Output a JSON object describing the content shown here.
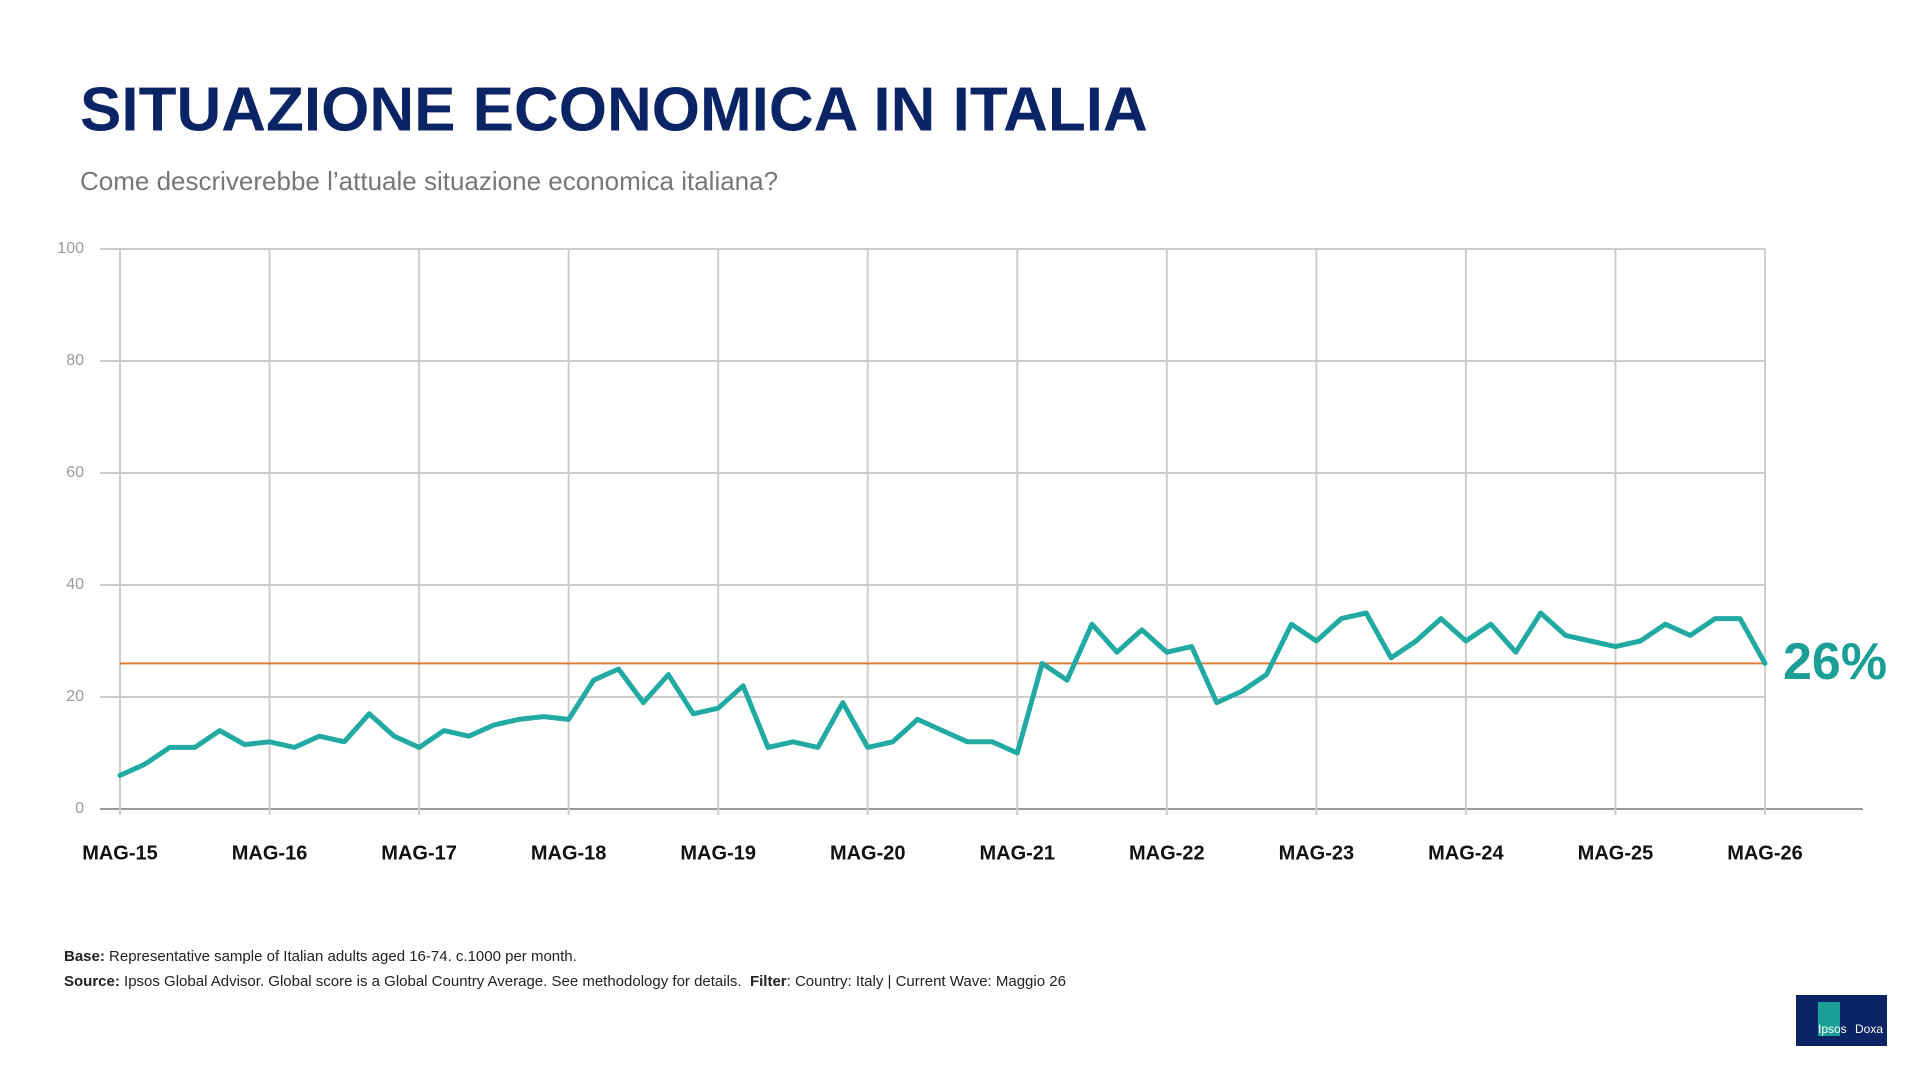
{
  "chart_data": {
    "type": "line",
    "title": "SITUAZIONE ECONOMICA IN ITALIA",
    "subtitle": "Come descriverebbe l’attuale situazione economica italiana?",
    "categories": [
      "MAG-15",
      null,
      null,
      null,
      null,
      null,
      "MAG-16",
      null,
      null,
      null,
      null,
      null,
      "MAG-17",
      null,
      null,
      null,
      null,
      null,
      "MAG-18",
      null,
      null,
      null,
      null,
      null,
      "MAG-19",
      null,
      null,
      null,
      null,
      null,
      "MAG-20",
      null,
      null,
      null,
      null,
      null,
      "MAG-21",
      null,
      null,
      null,
      null,
      null,
      "MAG-22",
      null,
      null,
      null,
      null,
      null,
      "MAG-23",
      null,
      null,
      null,
      null,
      null,
      "MAG-24",
      null,
      null,
      null,
      null,
      null,
      "MAG-25",
      null,
      null,
      null,
      null,
      null,
      "MAG-26"
    ],
    "series": [
      {
        "color": "#21aaa2",
        "values": [
          6,
          8,
          11,
          11,
          14,
          11.5,
          12,
          11,
          13,
          12,
          17,
          13,
          11,
          14,
          13,
          15,
          16,
          16.5,
          16,
          23,
          25,
          19,
          24,
          17,
          18,
          22,
          11,
          12,
          11,
          19,
          11,
          12,
          16,
          14,
          12,
          12,
          10,
          26,
          23,
          33,
          28,
          32,
          28,
          29,
          19,
          21,
          24,
          33,
          30,
          34,
          35,
          27,
          30,
          34,
          30,
          33,
          28,
          35,
          31,
          30,
          29,
          30,
          33,
          31,
          34,
          34,
          26
        ]
      }
    ],
    "ylim": [
      0,
      100
    ],
    "yticks": [
      0,
      20,
      40,
      60,
      80,
      100
    ],
    "grid": true,
    "reference_line": {
      "value": 26,
      "label": "26%",
      "color": "#e07b39",
      "label_color": "#1a9e96"
    }
  },
  "footer": {
    "base_label": "Base:",
    "base_text": "Representative sample of Italian adults aged 16-74. c.1000 per month.",
    "source_label": "Source:",
    "source_text": "Ipsos Global Advisor. Global score is a Global Country Average. See methodology for details.",
    "filter_label": "Filter",
    "filter_text": ": Country: Italy | Current Wave: Maggio 26"
  },
  "logo": {
    "left": "Ipsos",
    "right": "Doxa"
  }
}
